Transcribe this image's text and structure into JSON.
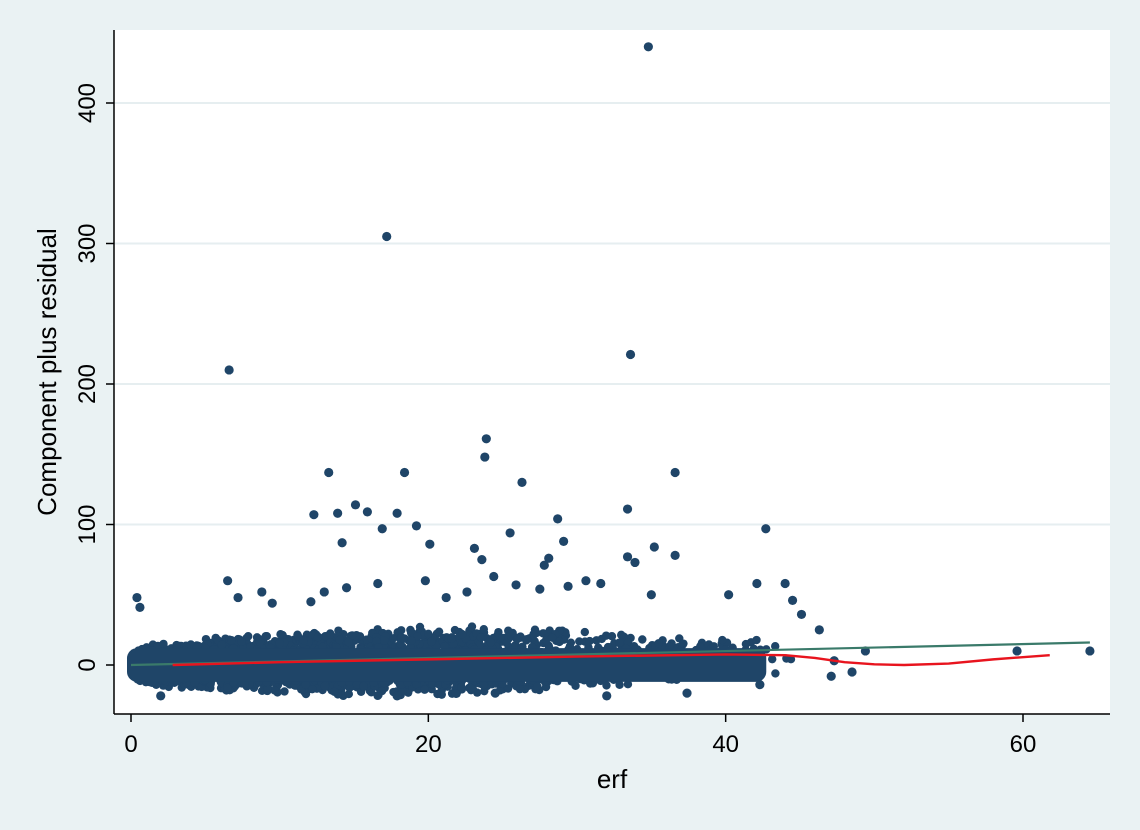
{
  "chart_data": {
    "type": "scatter",
    "title": "",
    "xlabel": "erf",
    "ylabel": "Component plus residual",
    "xlim": [
      -1,
      65
    ],
    "ylim": [
      -35,
      450
    ],
    "x_ticks": [
      0,
      20,
      40,
      60
    ],
    "y_ticks": [
      0,
      100,
      200,
      300,
      400
    ],
    "x_tick_labels": [
      "0",
      "20",
      "40",
      "60"
    ],
    "y_tick_labels": [
      "0",
      "100",
      "200",
      "300",
      "400"
    ],
    "grid": "horizontal",
    "legend": "none",
    "colors": {
      "background": "#eaf2f3",
      "plot_background": "#ffffff",
      "points": "#1f4568",
      "linear_fit": "#3a7a6a",
      "lowess": "#e8141e",
      "grid": "#e6eef0"
    },
    "series": [
      {
        "type": "scatter",
        "note_points": "selected outlier points read from the plot",
        "points": [
          [
            34.8,
            440
          ],
          [
            17.2,
            305
          ],
          [
            33.6,
            221
          ],
          [
            6.6,
            210
          ],
          [
            23.9,
            161
          ],
          [
            23.8,
            148
          ],
          [
            13.3,
            137
          ],
          [
            18.4,
            137
          ],
          [
            36.6,
            137
          ],
          [
            26.3,
            130
          ],
          [
            15.1,
            114
          ],
          [
            33.4,
            111
          ],
          [
            15.9,
            109
          ],
          [
            12.3,
            107
          ],
          [
            13.9,
            108
          ],
          [
            17.9,
            108
          ],
          [
            28.7,
            104
          ],
          [
            19.2,
            99
          ],
          [
            16.9,
            97
          ],
          [
            42.7,
            97
          ],
          [
            25.5,
            94
          ],
          [
            29.1,
            88
          ],
          [
            14.2,
            87
          ],
          [
            20.1,
            86
          ],
          [
            35.2,
            84
          ],
          [
            23.1,
            83
          ],
          [
            36.6,
            78
          ],
          [
            33.4,
            77
          ],
          [
            23.6,
            75
          ],
          [
            28.1,
            76
          ],
          [
            33.9,
            73
          ],
          [
            27.8,
            71
          ],
          [
            6.5,
            60
          ],
          [
            49.4,
            10
          ],
          [
            59.6,
            10
          ],
          [
            64.5,
            10
          ],
          [
            47.3,
            3
          ],
          [
            48.5,
            -5
          ],
          [
            47.1,
            -8
          ],
          [
            32.0,
            -22
          ],
          [
            17.9,
            -22
          ],
          [
            2.0,
            -22
          ],
          [
            24.5,
            -20
          ],
          [
            42.3,
            -14
          ],
          [
            37.4,
            -20
          ],
          [
            0.4,
            48
          ],
          [
            0.6,
            41
          ],
          [
            8.8,
            52
          ],
          [
            7.2,
            48
          ],
          [
            9.5,
            44
          ],
          [
            12.1,
            45
          ],
          [
            13.0,
            52
          ],
          [
            14.5,
            55
          ],
          [
            16.6,
            58
          ],
          [
            19.8,
            60
          ],
          [
            21.2,
            48
          ],
          [
            22.6,
            52
          ],
          [
            24.4,
            63
          ],
          [
            25.9,
            57
          ],
          [
            27.5,
            54
          ],
          [
            29.4,
            56
          ],
          [
            30.6,
            60
          ],
          [
            31.6,
            58
          ],
          [
            35.0,
            50
          ],
          [
            40.2,
            50
          ],
          [
            42.1,
            58
          ],
          [
            44.0,
            58
          ],
          [
            44.5,
            46
          ],
          [
            45.1,
            36
          ],
          [
            46.3,
            25
          ]
        ]
      },
      {
        "type": "line",
        "points": [
          [
            0,
            0
          ],
          [
            64.5,
            16
          ]
        ]
      },
      {
        "type": "line",
        "points": [
          [
            2.8,
            0
          ],
          [
            10,
            2
          ],
          [
            20,
            4
          ],
          [
            30,
            6
          ],
          [
            40,
            7.5
          ],
          [
            44,
            7
          ],
          [
            46,
            5
          ],
          [
            48,
            2
          ],
          [
            50,
            0.5
          ],
          [
            52,
            0
          ],
          [
            55,
            1
          ],
          [
            58,
            4
          ],
          [
            61.8,
            7
          ]
        ]
      }
    ]
  }
}
